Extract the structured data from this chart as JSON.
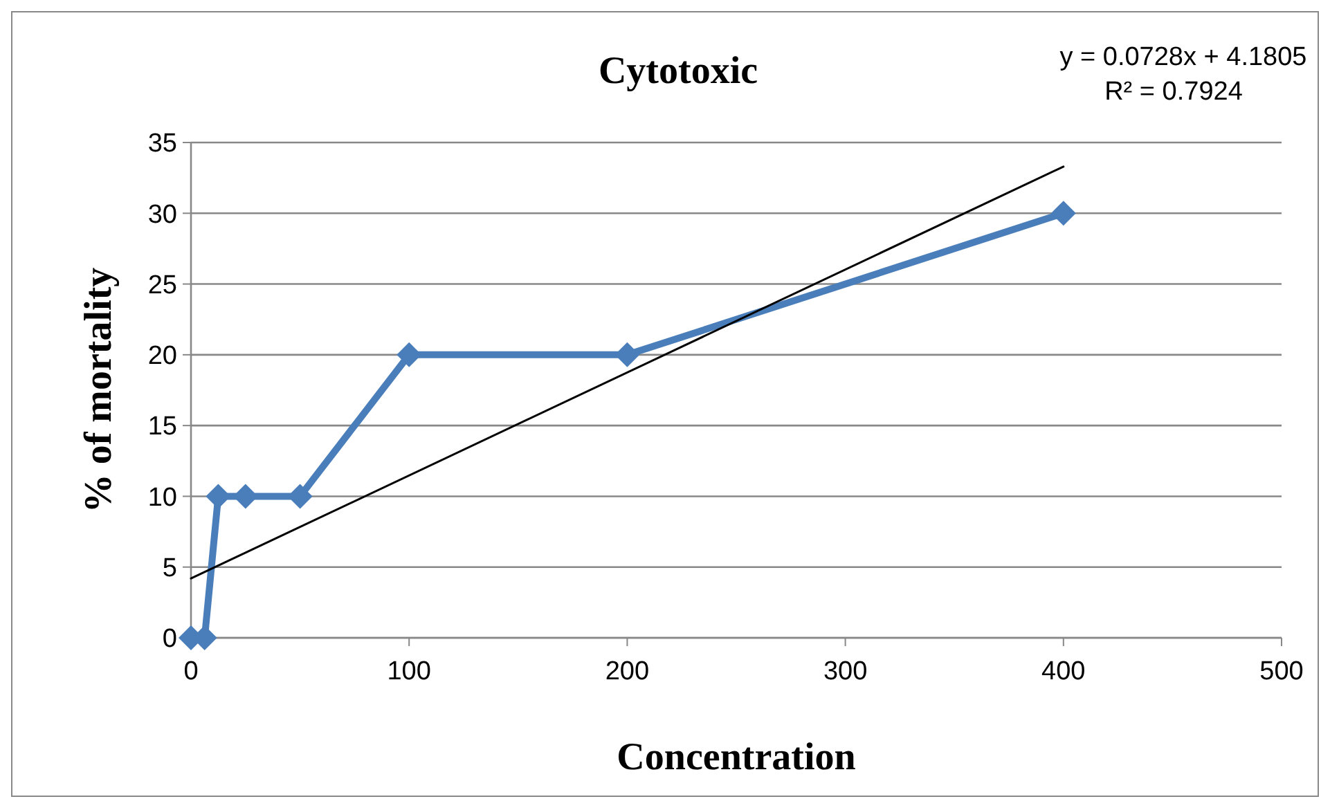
{
  "chart_data": {
    "type": "line",
    "title": "Cytotoxic",
    "xlabel": "Concentration",
    "ylabel": "% of mortality",
    "annotations": [
      "y = 0.0728x + 4.1805",
      "R² = 0.7924"
    ],
    "x": [
      0,
      6.25,
      12.5,
      25,
      50,
      100,
      200,
      400
    ],
    "series": [
      {
        "color": "#4a7ebb",
        "values": [
          0,
          0,
          10,
          10,
          10,
          20,
          20,
          30
        ],
        "marker": "diamond"
      },
      {
        "type": "line",
        "color": "#000000",
        "x": [
          0,
          400
        ],
        "values": [
          4.2,
          33.3
        ],
        "marker": "none"
      }
    ],
    "xlim": [
      0,
      500
    ],
    "xticks": [
      0,
      100,
      200,
      300,
      400,
      500
    ],
    "ylim": [
      0,
      35
    ],
    "yticks": [
      0,
      5,
      10,
      15,
      20,
      25,
      30,
      35
    ],
    "grid": "y"
  }
}
